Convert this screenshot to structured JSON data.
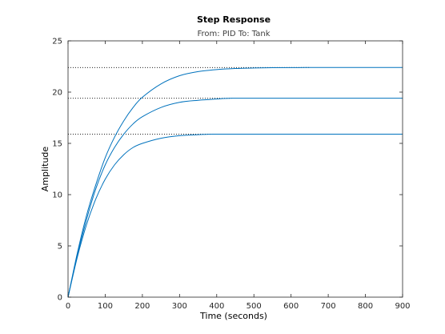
{
  "chart_data": {
    "type": "line",
    "title": "Step Response",
    "subtitle": "From: PID  To: Tank",
    "xlabel": "Time (seconds)",
    "ylabel": "Amplitude",
    "xlim": [
      0,
      900
    ],
    "ylim": [
      0,
      25
    ],
    "xticks": [
      0,
      100,
      200,
      300,
      400,
      500,
      600,
      700,
      800,
      900
    ],
    "yticks": [
      0,
      5,
      10,
      15,
      20,
      25
    ],
    "grid": false,
    "legend": "none",
    "line_color": "#0072BD",
    "reference_line_style": "dotted",
    "series": [
      {
        "final_value": 22.4,
        "settled_at": 650,
        "x": [
          0,
          25,
          50,
          75,
          100,
          125,
          150,
          175,
          200,
          250,
          300,
          350,
          400,
          450,
          500,
          550,
          600,
          650,
          700,
          800,
          900
        ],
        "values": [
          0,
          4.3,
          8.0,
          11.0,
          13.6,
          15.6,
          17.2,
          18.5,
          19.5,
          20.8,
          21.6,
          22.0,
          22.2,
          22.3,
          22.35,
          22.38,
          22.39,
          22.4,
          22.4,
          22.4,
          22.4
        ]
      },
      {
        "final_value": 19.4,
        "settled_at": 440,
        "x": [
          0,
          25,
          50,
          75,
          100,
          125,
          150,
          175,
          200,
          250,
          300,
          350,
          400,
          440,
          500,
          600,
          700,
          800,
          900
        ],
        "values": [
          0,
          4.1,
          7.6,
          10.6,
          12.9,
          14.6,
          15.9,
          16.9,
          17.6,
          18.5,
          19.0,
          19.2,
          19.33,
          19.4,
          19.4,
          19.4,
          19.4,
          19.4,
          19.4
        ]
      },
      {
        "final_value": 15.9,
        "settled_at": 390,
        "x": [
          0,
          25,
          50,
          75,
          100,
          125,
          150,
          175,
          200,
          250,
          300,
          350,
          390,
          450,
          500,
          600,
          700,
          800,
          900
        ],
        "values": [
          0,
          3.9,
          7.1,
          9.6,
          11.5,
          12.9,
          13.9,
          14.6,
          15.0,
          15.5,
          15.75,
          15.85,
          15.9,
          15.9,
          15.9,
          15.9,
          15.9,
          15.9,
          15.9
        ]
      }
    ]
  }
}
